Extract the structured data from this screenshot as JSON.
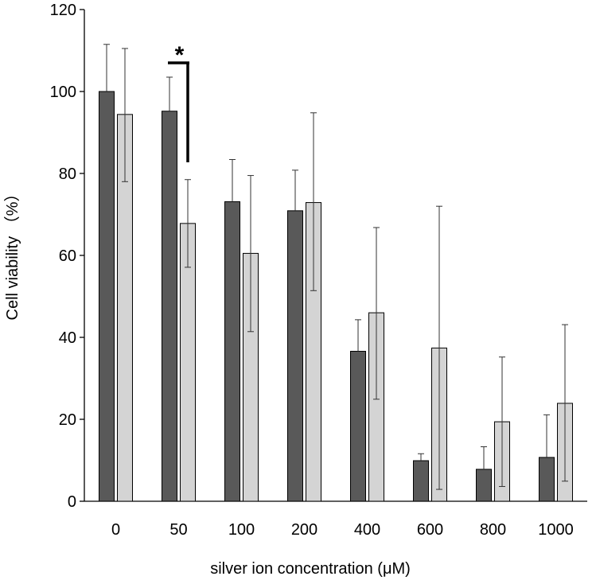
{
  "chart_data": {
    "type": "bar",
    "xlabel": "silver ion concentration (μM)",
    "ylabel": "Cell viability （%）",
    "ylim": [
      0,
      120
    ],
    "yticks": [
      0,
      20,
      40,
      60,
      80,
      100,
      120
    ],
    "categories": [
      "0",
      "50",
      "100",
      "200",
      "400",
      "600",
      "800",
      "1000"
    ],
    "grid": false,
    "legend": "none",
    "series": [
      {
        "color": "#595959",
        "values": [
          100,
          95.2,
          73.1,
          70.9,
          36.6,
          9.9,
          7.8,
          10.7
        ],
        "error_upper": [
          111.5,
          103.5,
          83.4,
          80.8,
          44.3,
          11.6,
          13.3,
          21.1
        ],
        "error_lower": [
          100,
          95.2,
          73.1,
          70.9,
          36.6,
          9.9,
          7.8,
          10.7
        ]
      },
      {
        "color": "#d4d4d4",
        "values": [
          94.4,
          67.8,
          60.5,
          72.9,
          46.0,
          37.4,
          19.4,
          23.9
        ],
        "error_upper": [
          110.5,
          78.5,
          79.5,
          94.8,
          66.8,
          72.0,
          35.2,
          43.1
        ],
        "error_lower": [
          78.0,
          57.1,
          41.4,
          51.4,
          24.9,
          2.9,
          3.6,
          4.9
        ]
      }
    ],
    "annotations": [
      {
        "text": "*",
        "from_category": "50",
        "meaning": "significance bracket between the two bars at 50"
      }
    ]
  }
}
